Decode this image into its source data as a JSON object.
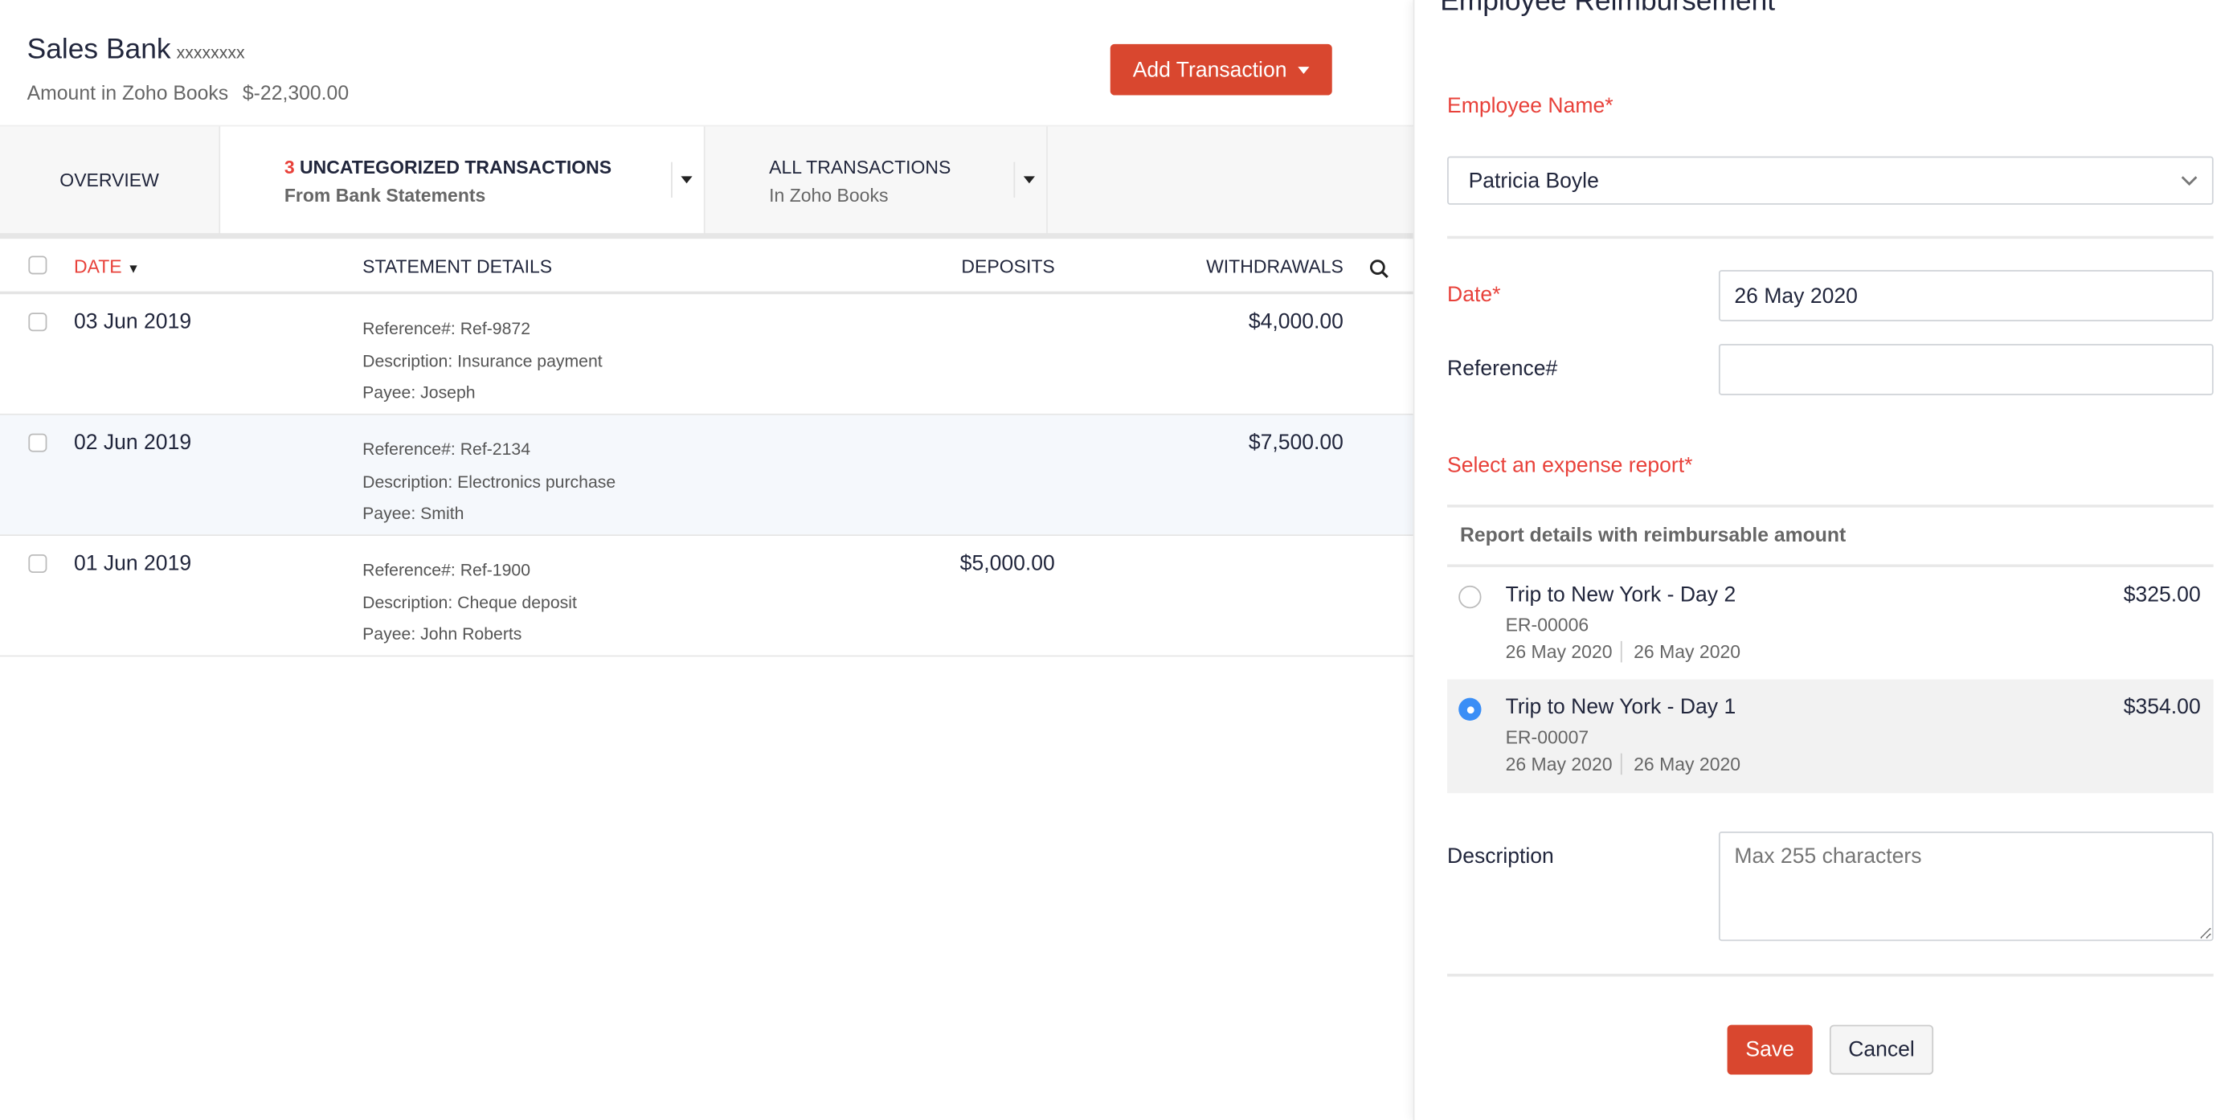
{
  "header": {
    "title": "Sales Bank",
    "account_mask": "xxxxxxxx",
    "amount_label": "Amount in Zoho Books",
    "amount_value": "$-22,300.00",
    "add_button": "Add Transaction"
  },
  "tabs": {
    "overview": "OVERVIEW",
    "uncategorized_count": "3",
    "uncategorized_label": "UNCATEGORIZED TRANSACTIONS",
    "uncategorized_sub": "From Bank Statements",
    "all_label": "ALL TRANSACTIONS",
    "all_sub": "In Zoho Books"
  },
  "table": {
    "columns": {
      "date": "DATE",
      "details": "STATEMENT DETAILS",
      "deposits": "DEPOSITS",
      "withdrawals": "WITHDRAWALS"
    },
    "rows": [
      {
        "date": "03 Jun 2019",
        "reference": "Reference#: Ref-9872",
        "description": "Description: Insurance payment",
        "payee": "Payee: Joseph",
        "deposit": "",
        "withdrawal": "$4,000.00"
      },
      {
        "date": "02 Jun 2019",
        "reference": "Reference#: Ref-2134",
        "description": "Description: Electronics purchase",
        "payee": "Payee: Smith",
        "deposit": "",
        "withdrawal": "$7,500.00"
      },
      {
        "date": "01 Jun 2019",
        "reference": "Reference#: Ref-1900",
        "description": "Description: Cheque deposit",
        "payee": "Payee: John Roberts",
        "deposit": "$5,000.00",
        "withdrawal": ""
      }
    ]
  },
  "panel": {
    "title": "Employee Reimbursement",
    "employee_label": "Employee Name*",
    "employee_value": "Patricia Boyle",
    "date_label": "Date*",
    "date_value": "26 May 2020",
    "reference_label": "Reference#",
    "reference_value": "",
    "report_label": "Select an expense report*",
    "report_header": "Report details with reimbursable amount",
    "reports": [
      {
        "name": "Trip to New York - Day 2",
        "id": "ER-00006",
        "from": "26 May 2020",
        "to": "26 May 2020",
        "amount": "$325.00",
        "selected": false
      },
      {
        "name": "Trip to New York - Day 1",
        "id": "ER-00007",
        "from": "26 May 2020",
        "to": "26 May 2020",
        "amount": "$354.00",
        "selected": true
      }
    ],
    "description_label": "Description",
    "description_placeholder": "Max 255 characters",
    "save": "Save",
    "cancel": "Cancel"
  },
  "colors": {
    "accent": "#d9472f",
    "required": "#e8413a",
    "radio_selected": "#3a8ef6"
  }
}
